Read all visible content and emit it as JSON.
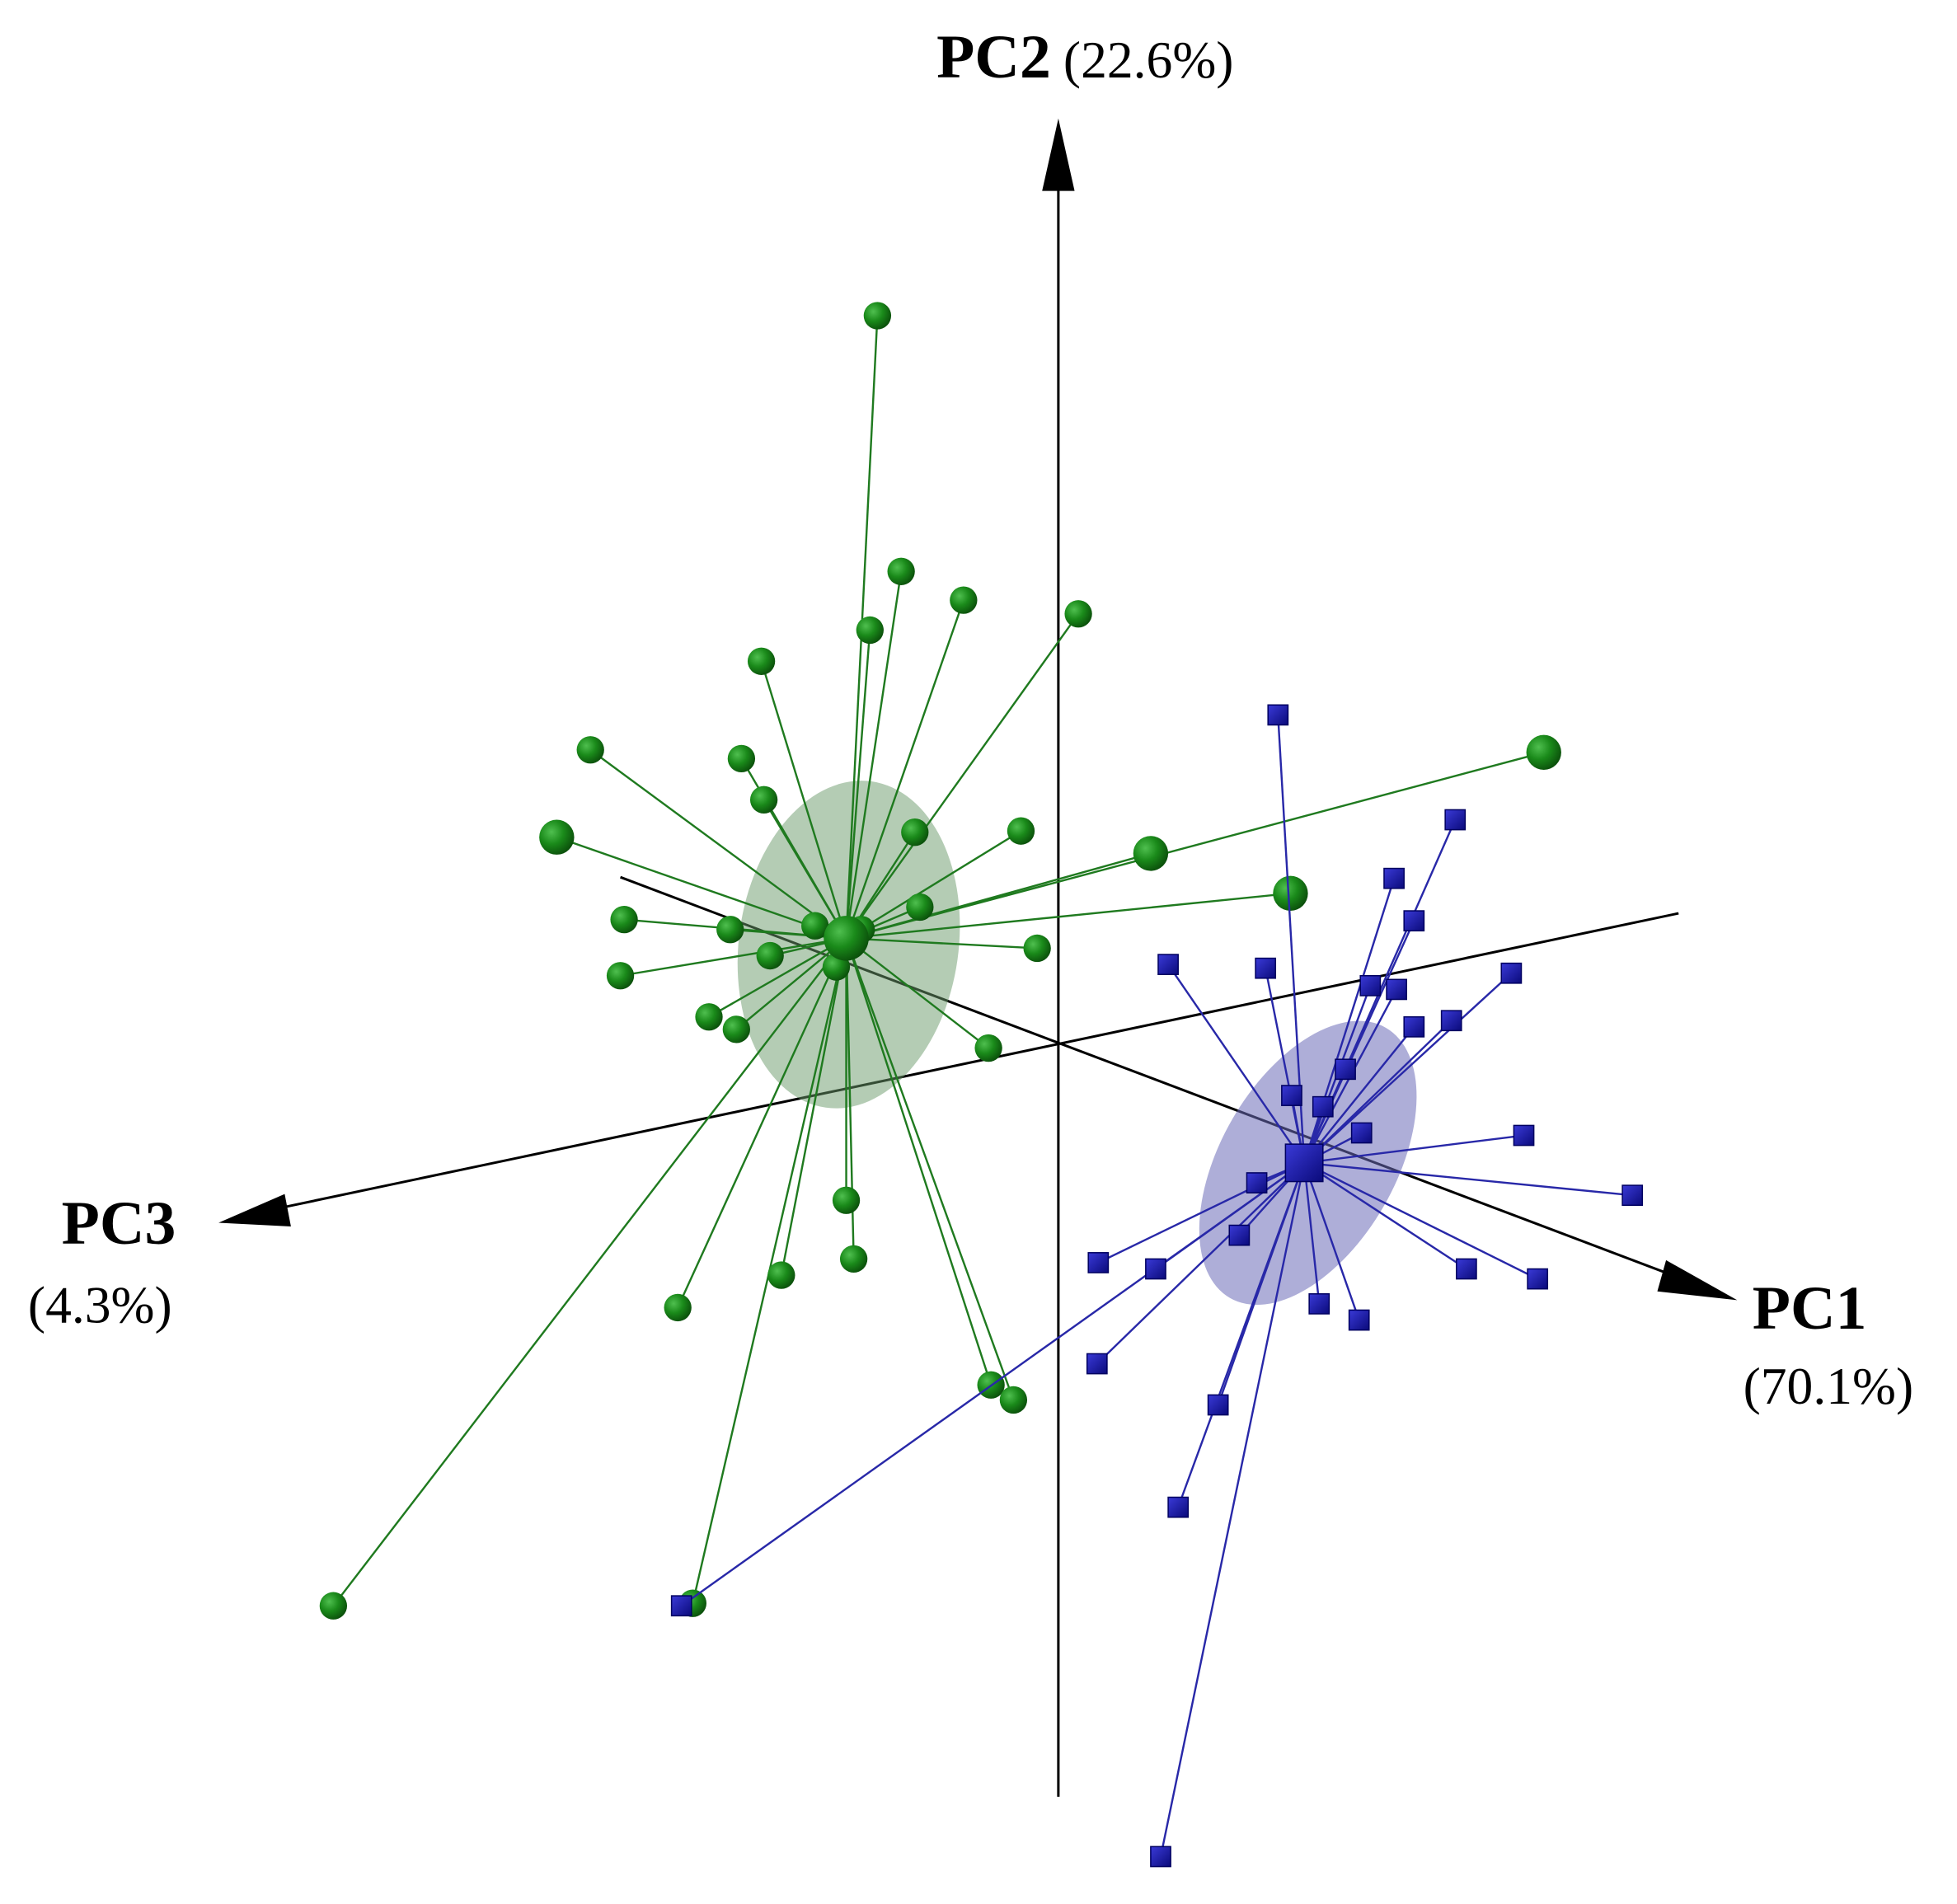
{
  "chart_data": {
    "type": "pca-3d",
    "axes": [
      {
        "name": "PC1",
        "variance": "(70.1%)"
      },
      {
        "name": "PC2",
        "variance": "(22.6%)"
      },
      {
        "name": "PC3",
        "variance": "(4.3%)"
      }
    ]
  }
}
